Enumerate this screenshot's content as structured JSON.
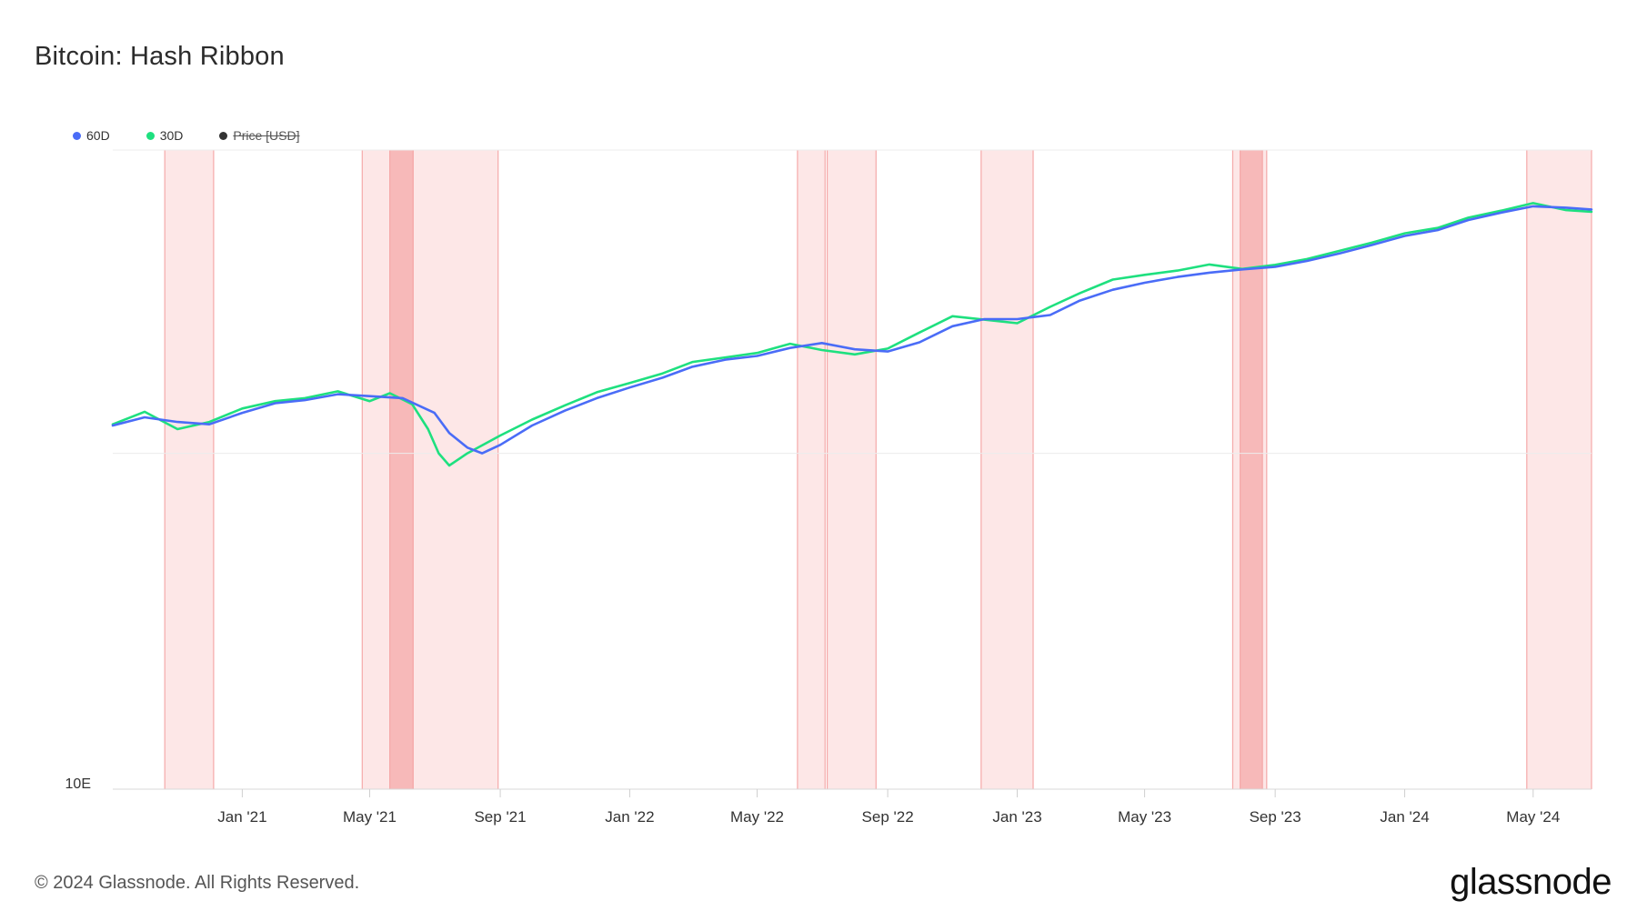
{
  "header": {
    "title": "Bitcoin: Hash Ribbon"
  },
  "legend": [
    {
      "label": "60D",
      "color": "#4a6cf7",
      "active": true
    },
    {
      "label": "30D",
      "color": "#1ee07f",
      "active": true
    },
    {
      "label": "Price [USD]",
      "color": "#333333",
      "active": false
    }
  ],
  "footer": {
    "copyright": "© 2024 Glassnode. All Rights Reserved.",
    "brand": "glassnode"
  },
  "chart_data": {
    "type": "line",
    "title": "Bitcoin: Hash Ribbon",
    "xlabel": "",
    "ylabel": "",
    "y_scale": "log",
    "y_tick_labels": [
      "10E"
    ],
    "x_ticks": [
      "Jan '21",
      "May '21",
      "Sep '21",
      "Jan '22",
      "May '22",
      "Sep '22",
      "Jan '23",
      "May '23",
      "Sep '23",
      "Jan '24",
      "May '24"
    ],
    "x_tick_dates": [
      "2021-01-01",
      "2021-05-01",
      "2021-09-01",
      "2022-01-01",
      "2022-05-01",
      "2022-09-01",
      "2023-01-01",
      "2023-05-01",
      "2023-09-01",
      "2024-01-01",
      "2024-05-01"
    ],
    "xlim": [
      "2020-09-01",
      "2024-06-25"
    ],
    "ylim_exa_hashes": [
      10,
      800
    ],
    "grid": "horizontal",
    "legend_position": "top-left",
    "capitulation_zones": [
      {
        "start": "2020-10-20",
        "end": "2020-12-05",
        "strength": "light"
      },
      {
        "start": "2021-04-24",
        "end": "2021-05-20",
        "strength": "light"
      },
      {
        "start": "2021-05-20",
        "end": "2021-06-11",
        "strength": "strong"
      },
      {
        "start": "2021-06-11",
        "end": "2021-08-30",
        "strength": "light"
      },
      {
        "start": "2022-06-08",
        "end": "2022-07-04",
        "strength": "light"
      },
      {
        "start": "2022-07-06",
        "end": "2022-08-21",
        "strength": "light"
      },
      {
        "start": "2022-11-28",
        "end": "2023-01-16",
        "strength": "light"
      },
      {
        "start": "2023-07-23",
        "end": "2023-07-30",
        "strength": "light"
      },
      {
        "start": "2023-07-30",
        "end": "2023-08-20",
        "strength": "strong"
      },
      {
        "start": "2023-08-20",
        "end": "2023-08-24",
        "strength": "light"
      },
      {
        "start": "2024-04-25",
        "end": "2024-06-25",
        "strength": "light"
      }
    ],
    "series": [
      {
        "name": "60D",
        "color": "#4a6cf7",
        "x": [
          "2020-09-01",
          "2020-10-01",
          "2020-11-01",
          "2020-12-01",
          "2021-01-01",
          "2021-02-01",
          "2021-03-01",
          "2021-04-01",
          "2021-05-01",
          "2021-06-01",
          "2021-07-01",
          "2021-07-15",
          "2021-08-01",
          "2021-08-15",
          "2021-09-01",
          "2021-10-01",
          "2021-11-01",
          "2021-12-01",
          "2022-01-01",
          "2022-02-01",
          "2022-03-01",
          "2022-04-01",
          "2022-05-01",
          "2022-06-01",
          "2022-07-01",
          "2022-08-01",
          "2022-09-01",
          "2022-10-01",
          "2022-11-01",
          "2022-12-01",
          "2023-01-01",
          "2023-02-01",
          "2023-03-01",
          "2023-04-01",
          "2023-05-01",
          "2023-06-01",
          "2023-07-01",
          "2023-08-01",
          "2023-09-01",
          "2023-10-01",
          "2023-11-01",
          "2023-12-01",
          "2024-01-01",
          "2024-02-01",
          "2024-03-01",
          "2024-04-01",
          "2024-05-01",
          "2024-06-01",
          "2024-06-25"
        ],
        "y": [
          121,
          128,
          124,
          122,
          132,
          141,
          144,
          150,
          148,
          146,
          132,
          115,
          104,
          100,
          106,
          121,
          134,
          146,
          157,
          168,
          181,
          190,
          195,
          206,
          213,
          204,
          201,
          214,
          239,
          251,
          251,
          258,
          285,
          307,
          322,
          335,
          345,
          353,
          359,
          374,
          394,
          417,
          444,
          462,
          495,
          521,
          544,
          539,
          532
        ]
      },
      {
        "name": "30D",
        "color": "#1ee07f",
        "x": [
          "2020-09-01",
          "2020-10-01",
          "2020-11-01",
          "2020-12-01",
          "2021-01-01",
          "2021-02-01",
          "2021-03-01",
          "2021-04-01",
          "2021-05-01",
          "2021-05-20",
          "2021-06-10",
          "2021-06-25",
          "2021-07-05",
          "2021-07-15",
          "2021-08-01",
          "2021-09-01",
          "2021-10-01",
          "2021-11-01",
          "2021-12-01",
          "2022-01-01",
          "2022-02-01",
          "2022-03-01",
          "2022-04-01",
          "2022-05-01",
          "2022-06-01",
          "2022-07-01",
          "2022-08-01",
          "2022-09-01",
          "2022-10-01",
          "2022-11-01",
          "2022-12-01",
          "2023-01-01",
          "2023-02-01",
          "2023-03-01",
          "2023-04-01",
          "2023-05-01",
          "2023-06-01",
          "2023-07-01",
          "2023-08-01",
          "2023-09-01",
          "2023-10-01",
          "2023-11-01",
          "2023-12-01",
          "2024-01-01",
          "2024-02-01",
          "2024-03-01",
          "2024-04-01",
          "2024-05-01",
          "2024-06-01",
          "2024-06-25"
        ],
        "y": [
          122,
          133,
          118,
          124,
          136,
          143,
          146,
          153,
          143,
          151,
          140,
          118,
          100,
          92,
          100,
          113,
          126,
          139,
          152,
          162,
          173,
          187,
          193,
          199,
          212,
          203,
          197,
          205,
          229,
          256,
          250,
          244,
          273,
          300,
          329,
          340,
          350,
          365,
          354,
          364,
          379,
          401,
          424,
          452,
          469,
          503,
          528,
          556,
          530,
          524
        ]
      }
    ]
  }
}
